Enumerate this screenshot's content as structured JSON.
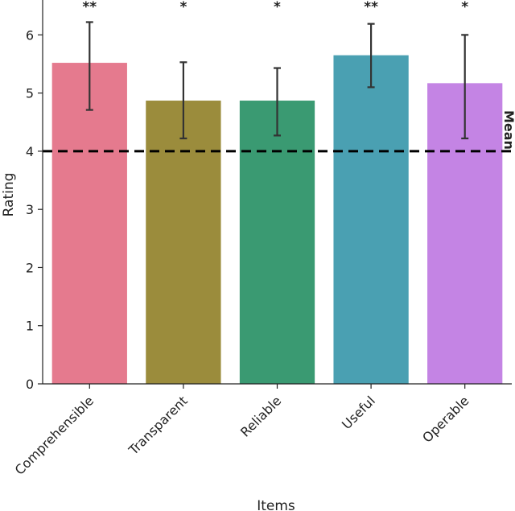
{
  "chart_data": {
    "type": "bar",
    "title": "",
    "xlabel": "Items",
    "ylabel": "Rating",
    "categories": [
      "Comprehensible",
      "Transparent",
      "Reliable",
      "Useful",
      "Operable"
    ],
    "values": [
      5.52,
      4.87,
      4.87,
      5.65,
      5.17
    ],
    "error_low": [
      4.71,
      4.22,
      4.27,
      5.1,
      4.22
    ],
    "error_high": [
      6.22,
      5.53,
      5.43,
      6.19,
      6.0
    ],
    "significance": [
      "**",
      "*",
      "*",
      "**",
      "*"
    ],
    "bar_colors": [
      "#e57a8e",
      "#9b8c3c",
      "#3a9a72",
      "#4aa0b2",
      "#c484e4"
    ],
    "ylim": [
      0,
      6.6
    ],
    "yticks": [
      0,
      1,
      2,
      3,
      4,
      5,
      6
    ],
    "reference_line": {
      "value": 4,
      "label": "Mean",
      "style": "dashed",
      "color": "#000000"
    },
    "grid": false
  }
}
